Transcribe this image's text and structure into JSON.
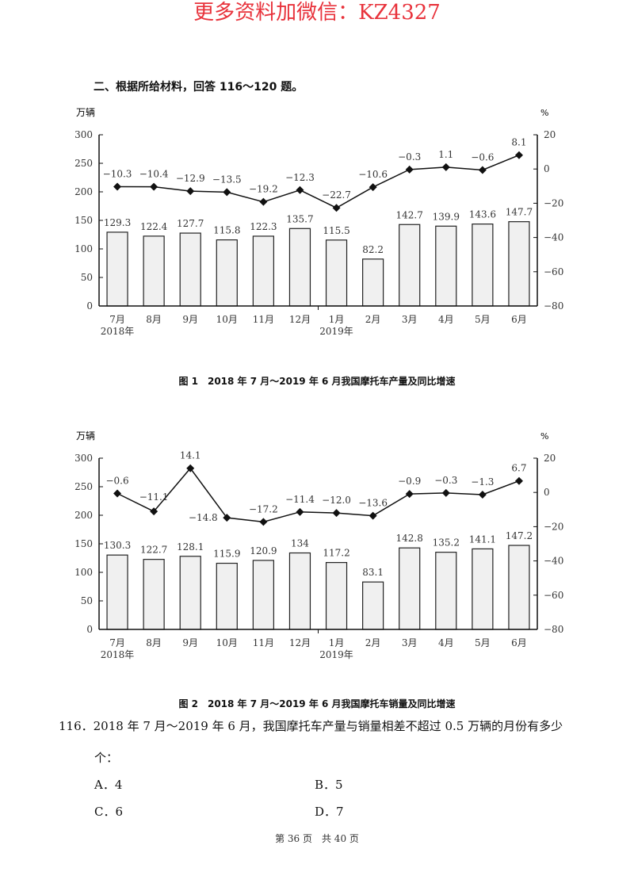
{
  "watermark": "更多资料加微信：KZ4327",
  "section_heading": "二、根据所给材料，回答 116～120 题。",
  "figures": [
    {
      "caption": "图 1　2018 年 7 月～2019 年 6 月我国摩托车产量及同比增速",
      "left_axis_unit": "万辆",
      "right_axis_unit": "%",
      "legend": {
        "bar": "产量",
        "line": "增速"
      }
    },
    {
      "caption": "图 2　2018 年 7 月～2019 年 6 月我国摩托车销量及同比增速",
      "left_axis_unit": "万辆",
      "right_axis_unit": "%",
      "legend": {
        "bar": "销量",
        "line": "增速"
      }
    }
  ],
  "chart_data": [
    {
      "type": "bar",
      "title": "图1 2018年7月～2019年6月我国摩托车产量及同比增速",
      "categories": [
        "7月",
        "8月",
        "9月",
        "10月",
        "11月",
        "12月",
        "1月",
        "2月",
        "3月",
        "4月",
        "5月",
        "6月"
      ],
      "year_labels": [
        {
          "index": 0,
          "label": "2018年"
        },
        {
          "index": 6,
          "label": "2019年"
        }
      ],
      "series": [
        {
          "name": "产量",
          "type": "bar",
          "axis": "left",
          "values": [
            129.3,
            122.4,
            127.7,
            115.8,
            122.3,
            135.7,
            115.5,
            82.2,
            142.7,
            139.9,
            143.6,
            147.7
          ]
        },
        {
          "name": "增速",
          "type": "line",
          "axis": "right",
          "values": [
            -10.3,
            -10.4,
            -12.9,
            -13.5,
            -19.2,
            -12.3,
            -22.7,
            -10.6,
            -0.3,
            1.1,
            -0.6,
            8.1
          ]
        }
      ],
      "ylabel": "万辆",
      "ylim": [
        0,
        300
      ],
      "yticks": [
        0,
        50,
        100,
        150,
        200,
        250,
        300
      ],
      "y2label": "%",
      "y2lim": [
        -80,
        20
      ],
      "y2ticks": [
        -80,
        -60,
        -40,
        -20,
        0,
        20
      ],
      "legend_position": "bottom",
      "grid": false
    },
    {
      "type": "bar",
      "title": "图2 2018年7月～2019年6月我国摩托车销量及同比增速",
      "categories": [
        "7月",
        "8月",
        "9月",
        "10月",
        "11月",
        "12月",
        "1月",
        "2月",
        "3月",
        "4月",
        "5月",
        "6月"
      ],
      "year_labels": [
        {
          "index": 0,
          "label": "2018年"
        },
        {
          "index": 6,
          "label": "2019年"
        }
      ],
      "series": [
        {
          "name": "销量",
          "type": "bar",
          "axis": "left",
          "values": [
            130.3,
            122.7,
            128.1,
            115.9,
            120.9,
            134,
            117.2,
            83.1,
            142.8,
            135.2,
            141.1,
            147.2
          ]
        },
        {
          "name": "增速",
          "type": "line",
          "axis": "right",
          "values": [
            -0.6,
            -11.1,
            14.1,
            -14.8,
            -17.2,
            -11.4,
            -12.0,
            -13.6,
            -0.9,
            -0.3,
            -1.3,
            6.7
          ]
        }
      ],
      "ylabel": "万辆",
      "ylim": [
        0,
        300
      ],
      "yticks": [
        0,
        50,
        100,
        150,
        200,
        250,
        300
      ],
      "y2label": "%",
      "y2lim": [
        -80,
        20
      ],
      "y2ticks": [
        -80,
        -60,
        -40,
        -20,
        0,
        20
      ],
      "legend_position": "bottom",
      "grid": false
    }
  ],
  "question": {
    "number": "116．",
    "text": "2018 年 7 月～2019 年 6 月，我国摩托车产量与销量相差不超过 0.5 万辆的月份有多少",
    "text_cont": "个：",
    "options": [
      {
        "label": "A．4"
      },
      {
        "label": "B．5"
      },
      {
        "label": "C．6"
      },
      {
        "label": "D．7"
      }
    ]
  },
  "footer": "第 36 页　共 40 页"
}
